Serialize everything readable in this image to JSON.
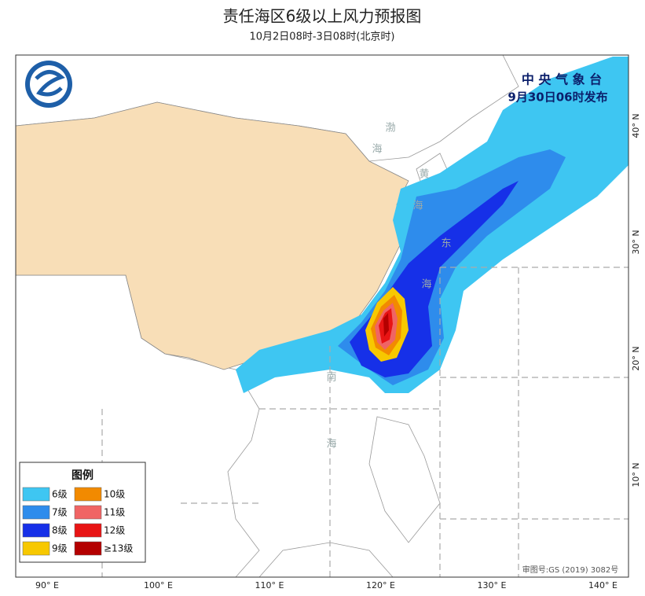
{
  "header": {
    "title": "责任海区6级以上风力预报图",
    "subtitle": "10月2日08时-3日08时(北京时)"
  },
  "agency": {
    "name": "中 央 气 象 台",
    "issued": "9月30日06时发布"
  },
  "legend": {
    "title": "图例",
    "items": [
      {
        "label": "6级",
        "color": "#3ec6f2"
      },
      {
        "label": "7级",
        "color": "#2e8cec"
      },
      {
        "label": "8级",
        "color": "#1630e8"
      },
      {
        "label": "9级",
        "color": "#f7c800"
      },
      {
        "label": "10级",
        "color": "#f28a00"
      },
      {
        "label": "11级",
        "color": "#f06464"
      },
      {
        "label": "12级",
        "color": "#e81414"
      },
      {
        "label": "≥13级",
        "color": "#b40000"
      }
    ]
  },
  "axes": {
    "longitude": [
      "90° E",
      "100° E",
      "110° E",
      "120° E",
      "130° E",
      "140° E"
    ],
    "latitude": [
      "40° N",
      "30° N",
      "20° N",
      "10° N"
    ]
  },
  "sea_labels": [
    "渤",
    "海",
    "黄",
    "海",
    "东",
    "海",
    "南",
    "海"
  ],
  "approval": "审图号:GS (2019) 3082号"
}
